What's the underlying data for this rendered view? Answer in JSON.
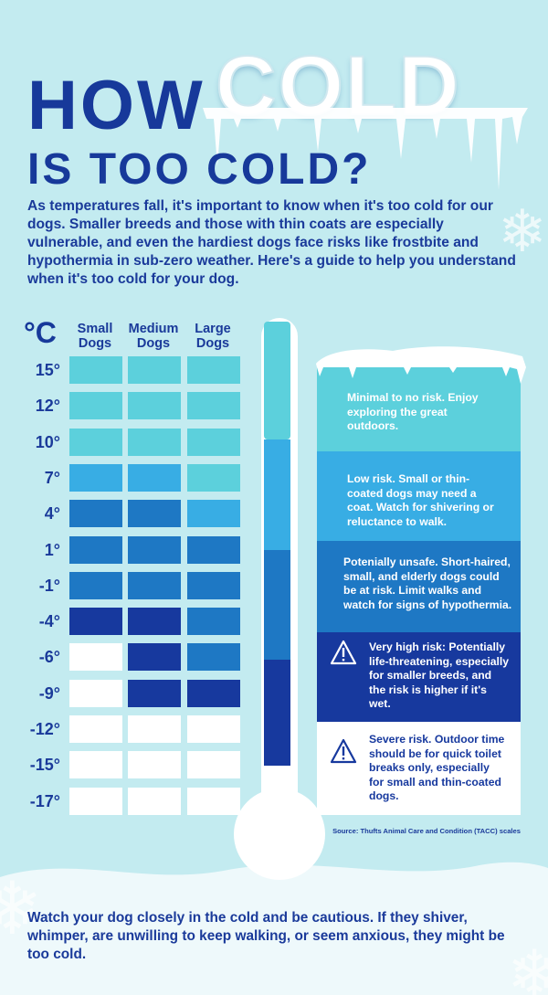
{
  "title": {
    "line1_word1": "HOW",
    "line1_word2": "COLD",
    "line2": "IS TOO COLD?"
  },
  "intro": "As temperatures fall, it's important to know when it's too cold for our dogs. Smaller breeds and those with thin coats are especially vulnerable, and even the hardiest dogs face risks like frostbite and hypothermia in sub-zero weather. Here's a guide to help you understand when it's too cold for your dog.",
  "table": {
    "unit": "°C",
    "columns": [
      "Small Dogs",
      "Medium Dogs",
      "Large Dogs"
    ],
    "rows": [
      {
        "temp": "15°",
        "levels": [
          1,
          1,
          1
        ]
      },
      {
        "temp": "12°",
        "levels": [
          1,
          1,
          1
        ]
      },
      {
        "temp": "10°",
        "levels": [
          1,
          1,
          1
        ]
      },
      {
        "temp": "7°",
        "levels": [
          2,
          2,
          1
        ]
      },
      {
        "temp": "4°",
        "levels": [
          3,
          3,
          2
        ]
      },
      {
        "temp": "1°",
        "levels": [
          3,
          3,
          3
        ]
      },
      {
        "temp": "-1°",
        "levels": [
          3,
          3,
          3
        ]
      },
      {
        "temp": "-4°",
        "levels": [
          4,
          4,
          3
        ]
      },
      {
        "temp": "-6°",
        "levels": [
          5,
          4,
          3
        ]
      },
      {
        "temp": "-9°",
        "levels": [
          5,
          4,
          4
        ]
      },
      {
        "temp": "-12°",
        "levels": [
          5,
          5,
          5
        ]
      },
      {
        "temp": "-15°",
        "levels": [
          5,
          5,
          5
        ]
      },
      {
        "temp": "-17°",
        "levels": [
          5,
          5,
          5
        ]
      }
    ]
  },
  "risk_levels": [
    {
      "level": 1,
      "color": "#5cd0dc",
      "text": "Minimal to no risk. Enjoy exploring the great outdoors.",
      "warning": false
    },
    {
      "level": 2,
      "color": "#38ade4",
      "text": "Low risk. Small or thin-coated dogs may need a coat. Watch for shivering or reluctance to walk.",
      "warning": false
    },
    {
      "level": 3,
      "color": "#1e78c4",
      "text": "Potenially unsafe. Short-haired, small, and elderly dogs could be at risk. Limit walks and watch for signs of hypothermia.",
      "warning": false
    },
    {
      "level": 4,
      "color": "#17399e",
      "text": "Very high risk: Potentially life-threatening, especially for smaller breeds, and the risk is higher if it's wet.",
      "warning": true
    },
    {
      "level": 5,
      "color": "#ffffff",
      "text": "Severe risk. Outdoor time should be for quick toilet breaks only, especially for small and thin-coated dogs.",
      "warning": true
    }
  ],
  "warning_icon": "warning-triangle-icon",
  "source": "Source: Thufts Animal Care and Condition (TACC) scales",
  "footer": "Watch your dog closely in the cold and be cautious. If they shiver, whimper, are unwilling to keep walking, or seem anxious, they might be too cold."
}
